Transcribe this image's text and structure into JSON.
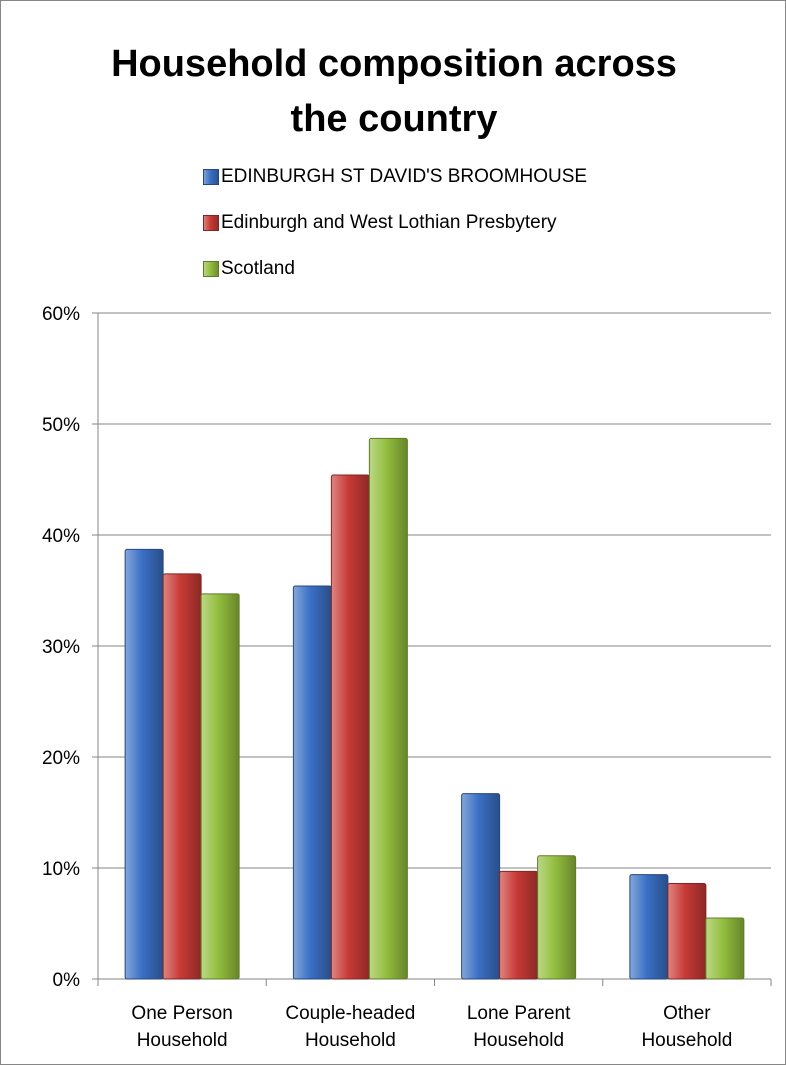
{
  "chart_data": {
    "type": "bar",
    "title": "Household composition across the country",
    "title_lines": [
      "Household composition across",
      "the country"
    ],
    "categories": [
      [
        "One Person",
        "Household"
      ],
      [
        "Couple-headed",
        "Household"
      ],
      [
        "Lone Parent",
        "Household"
      ],
      [
        "Other",
        "Household"
      ]
    ],
    "series": [
      {
        "name": "EDINBURGH ST DAVID'S BROOMHOUSE",
        "color": "#3a6fc4",
        "values": [
          38.7,
          35.4,
          16.7,
          9.4
        ]
      },
      {
        "name": "Edinburgh and West Lothian Presbytery",
        "color": "#c83a36",
        "values": [
          36.5,
          45.4,
          9.7,
          8.6
        ]
      },
      {
        "name": "Scotland",
        "color": "#93be3e",
        "values": [
          34.7,
          48.7,
          11.1,
          5.5
        ]
      }
    ],
    "ylim": [
      0,
      60
    ],
    "yticks": [
      "0%",
      "10%",
      "20%",
      "30%",
      "40%",
      "50%",
      "60%"
    ],
    "ytick_values": [
      0,
      10,
      20,
      30,
      40,
      50,
      60
    ],
    "xlabel": "",
    "ylabel": "",
    "grid": true,
    "legend_position": "top"
  }
}
